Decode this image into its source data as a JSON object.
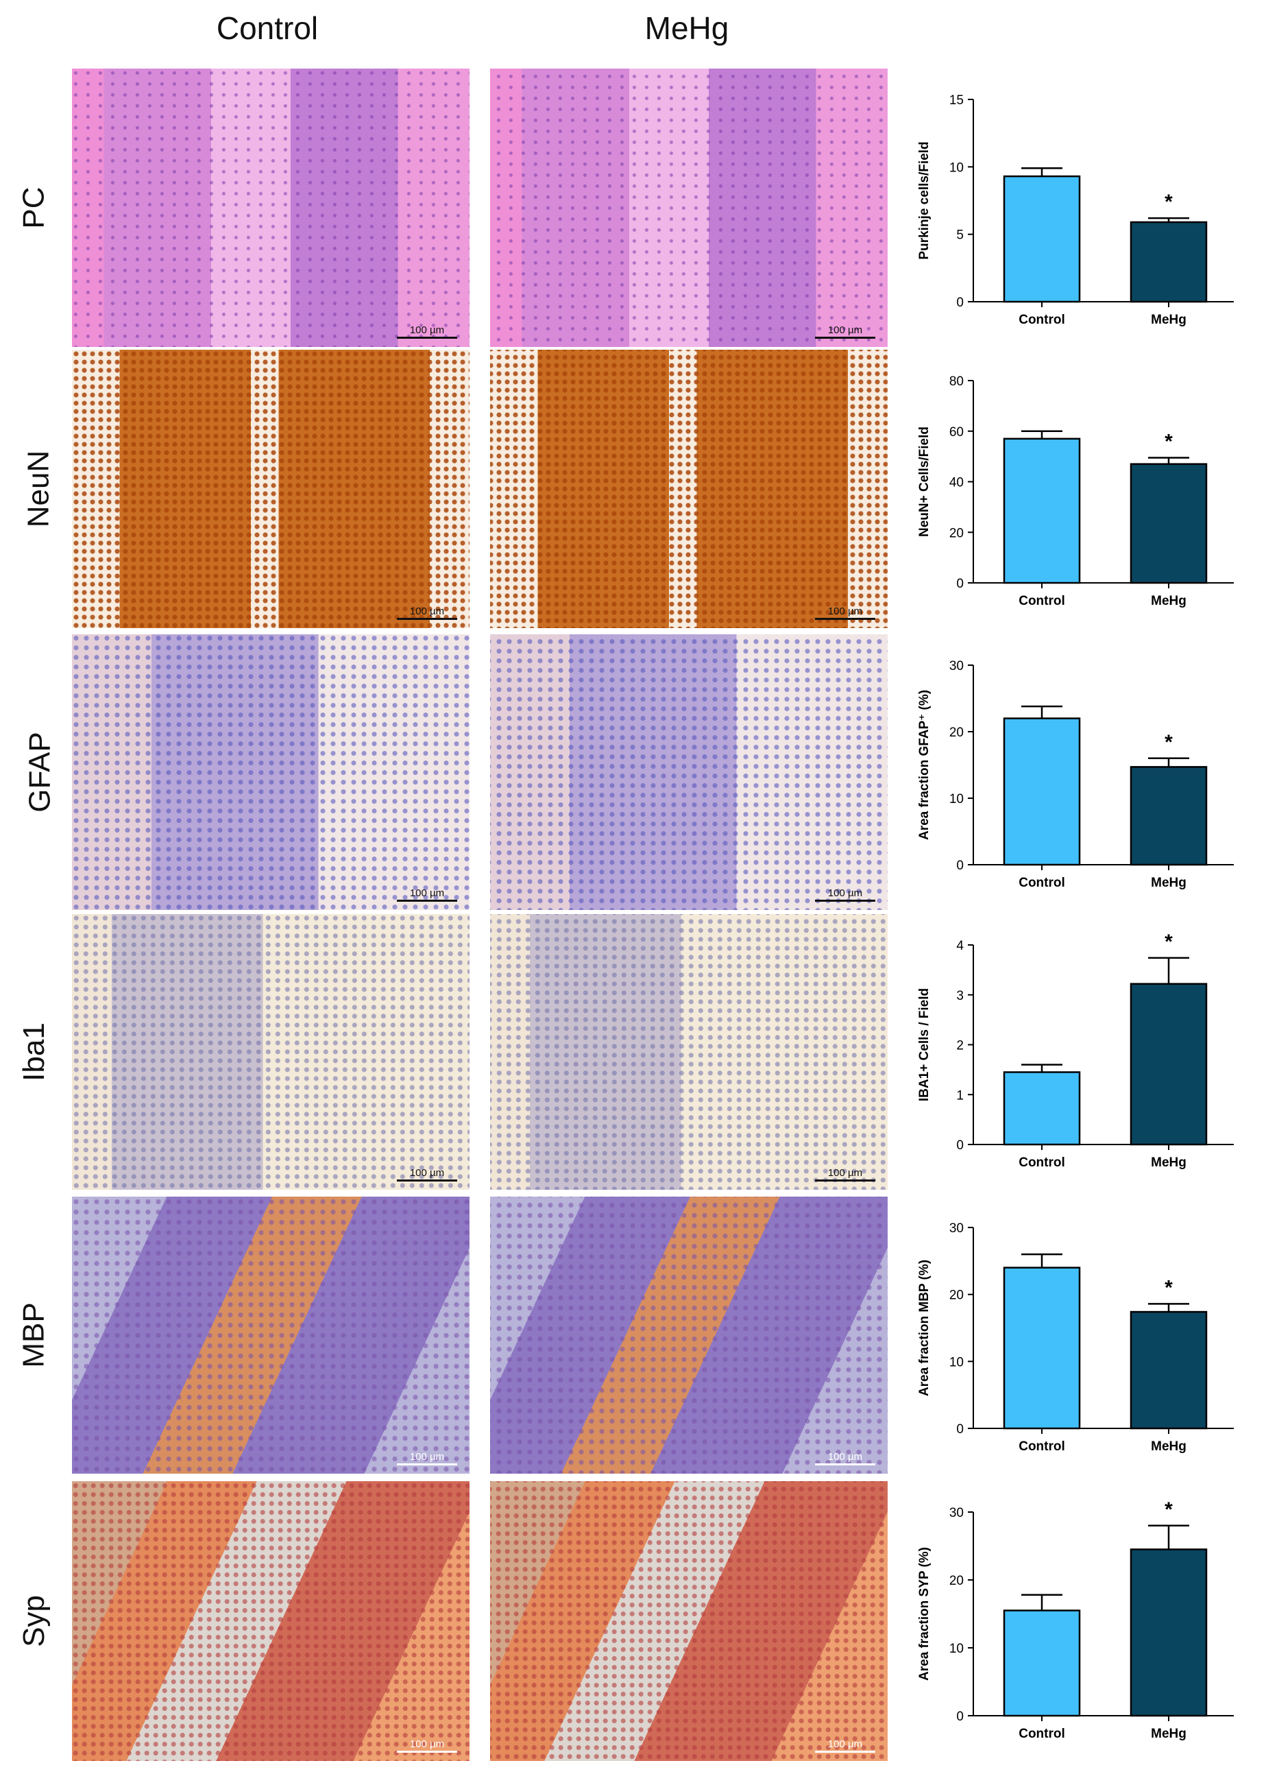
{
  "headers": {
    "control": "Control",
    "mehg": "MeHg"
  },
  "rows": [
    {
      "label": "PC",
      "stain": "he"
    },
    {
      "label": "NeuN",
      "stain": "neun"
    },
    {
      "label": "GFAP",
      "stain": "gfap"
    },
    {
      "label": "Iba1",
      "stain": "iba"
    },
    {
      "label": "MBP",
      "stain": "mbp"
    },
    {
      "label": "Syp",
      "stain": "syp"
    }
  ],
  "scalebar": {
    "label": "100 µm"
  },
  "colors": {
    "control": "#42c0fb",
    "mehg": "#0a4560",
    "outline": "#000000"
  },
  "chart_data": [
    {
      "type": "bar",
      "categories": [
        "Control",
        "MeHg"
      ],
      "values": [
        9.3,
        5.9
      ],
      "errors": [
        0.6,
        0.3
      ],
      "ylabel": "Purkinje cells/Field",
      "ylim": [
        0,
        15
      ],
      "ticks": [
        0,
        5,
        10,
        15
      ],
      "significance": [
        "",
        "*"
      ]
    },
    {
      "type": "bar",
      "categories": [
        "Control",
        "MeHg"
      ],
      "values": [
        57,
        47
      ],
      "errors": [
        3,
        2.5
      ],
      "ylabel": "NeuN+ Cells/Field",
      "ylim": [
        0,
        80
      ],
      "ticks": [
        0,
        20,
        40,
        60,
        80
      ],
      "significance": [
        "",
        "*"
      ]
    },
    {
      "type": "bar",
      "categories": [
        "Control",
        "MeHg"
      ],
      "values": [
        22,
        14.7
      ],
      "errors": [
        1.8,
        1.3
      ],
      "ylabel": "Area fraction GFAP⁺ (%)",
      "ylim": [
        0,
        30
      ],
      "ticks": [
        0,
        10,
        20,
        30
      ],
      "significance": [
        "",
        "*"
      ]
    },
    {
      "type": "bar",
      "categories": [
        "Control",
        "MeHg"
      ],
      "values": [
        1.45,
        3.22
      ],
      "errors": [
        0.15,
        0.52
      ],
      "ylabel": "IBA1+ Cells / Field",
      "ylim": [
        0,
        4
      ],
      "ticks": [
        0,
        1,
        2,
        3,
        4
      ],
      "significance": [
        "",
        "*"
      ]
    },
    {
      "type": "bar",
      "categories": [
        "Control",
        "MeHg"
      ],
      "values": [
        24,
        17.4
      ],
      "errors": [
        2,
        1.2
      ],
      "ylabel": "Area fraction MBP (%)",
      "ylim": [
        0,
        30
      ],
      "ticks": [
        0,
        10,
        20,
        30
      ],
      "significance": [
        "",
        "*"
      ]
    },
    {
      "type": "bar",
      "categories": [
        "Control",
        "MeHg"
      ],
      "values": [
        15.5,
        24.5
      ],
      "errors": [
        2.3,
        3.5
      ],
      "ylabel": "Area fraction SYP (%)",
      "ylim": [
        0,
        30
      ],
      "ticks": [
        0,
        10,
        20,
        30
      ],
      "significance": [
        "",
        "*"
      ]
    }
  ]
}
